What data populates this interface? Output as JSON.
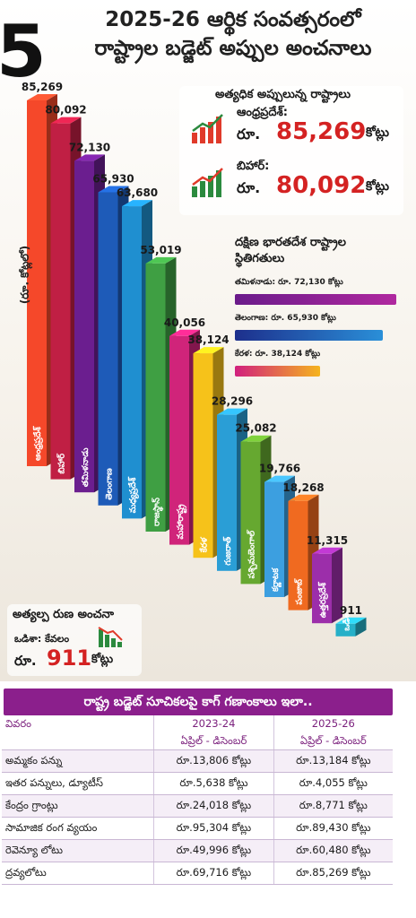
{
  "header": {
    "big_number": "5",
    "title_line1": "2025-26 ఆర్థిక సంవత్సరంలో",
    "title_line2": "రాష్ట్రాల బడ్జెట్ అప్పుల అంచనాలు"
  },
  "chart_data": {
    "type": "bar",
    "title": "2025-26 ఆర్థిక సంవత్సరంలో రాష్ట్రాల బడ్జెట్ అప్పుల అంచనాలు",
    "ylabel": "(రూ. కోట్లలో)",
    "categories": [
      "ఆంధ్రప్రదేశ్",
      "బిహార్",
      "తమిళనాడు",
      "తెలంగాణ",
      "మధ్యప్రదేశ్",
      "రాజస్థాన్",
      "మహారాష్ట్ర",
      "కేరళ",
      "గుజరాత్",
      "పశ్చిమబెంగాల్",
      "కర్ణాటక",
      "పంజాబ్",
      "ఉత్తరప్రదేశ్",
      "ఒడిశా"
    ],
    "values": [
      85269,
      80092,
      72130,
      65930,
      63680,
      53019,
      40056,
      38124,
      28296,
      25082,
      19766,
      18268,
      11315,
      911
    ],
    "value_labels": [
      "85,269",
      "80,092",
      "72,130",
      "65,930",
      "63,680",
      "53,019",
      "40,056",
      "38,124",
      "28,296",
      "25,082",
      "19,766",
      "18,268",
      "11,315",
      "911"
    ],
    "colors": [
      "#f5482a",
      "#c01f44",
      "#6b1e8f",
      "#1e5bb8",
      "#1f8fd0",
      "#3f9f43",
      "#d0247a",
      "#f6c21a",
      "#2a9ed6",
      "#66a830",
      "#3c9fe0",
      "#f06a20",
      "#9c2eaa",
      "#26b0c8"
    ]
  },
  "highlight": {
    "title": "అత్యధిక అప్పులున్న రాష్ట్రాలు",
    "items": [
      {
        "name": "ఆంధ్రప్రదేశ్:",
        "prefix": "రూ.",
        "amount": "85,269",
        "suffix": "కోట్లు"
      },
      {
        "name": "బిహార్:",
        "prefix": "రూ.",
        "amount": "80,092",
        "suffix": "కోట్లు"
      }
    ]
  },
  "south_india": {
    "title_line1": "దక్షిణ భారతదేశ రాష్ట్రాల",
    "title_line2": "స్థితిగతులు",
    "rows": [
      {
        "label": "తమిళనాడు: రూ. 72,130 కోట్లు",
        "value": 72130
      },
      {
        "label": "తెలంగాణ: రూ. 65,930 కోట్లు",
        "value": 65930
      },
      {
        "label": "కేరళ: రూ. 38,124 కోట్లు",
        "value": 38124
      }
    ]
  },
  "lowest": {
    "title": "అత్యల్ప రుణ అంచనా",
    "sub": "ఒడిశా: కేవలం",
    "prefix": "రూ.",
    "amount": "911",
    "suffix": "కోట్లు"
  },
  "table": {
    "banner": "రాష్ట్ర బడ్జెట్ సూచికలపై కాగ్ గణాంకాలు ఇలా..",
    "columns": [
      {
        "line1": "వివరం",
        "line2": ""
      },
      {
        "line1": "2023-24",
        "line2": "ఏప్రిల్ - డిసెంబర్"
      },
      {
        "line1": "2025-26",
        "line2": "ఏప్రిల్ - డిసెంబర్"
      }
    ],
    "rows": [
      [
        "అమ్మకం పన్ను",
        "రూ.13,806 కోట్లు",
        "రూ.13,184 కోట్లు"
      ],
      [
        "ఇతర పన్నులు, డ్యూటీస్",
        "రూ.5,638 కోట్లు",
        "రూ.4,055 కోట్లు"
      ],
      [
        "కేంద్రం గ్రాంట్లు",
        "రూ.24,018 కోట్లు",
        "రూ.8,771 కోట్లు"
      ],
      [
        "సామాజిక రంగ వ్యయం",
        "రూ.95,304 కోట్లు",
        "రూ.89,430 కోట్లు"
      ],
      [
        "రెవెన్యూ లోటు",
        "రూ.49,996 కోట్లు",
        "రూ.60,480 కోట్లు"
      ],
      [
        "ద్రవ్యలోటు",
        "రూ.69,716 కోట్లు",
        "రూ.85,269 కోట్లు"
      ]
    ]
  }
}
